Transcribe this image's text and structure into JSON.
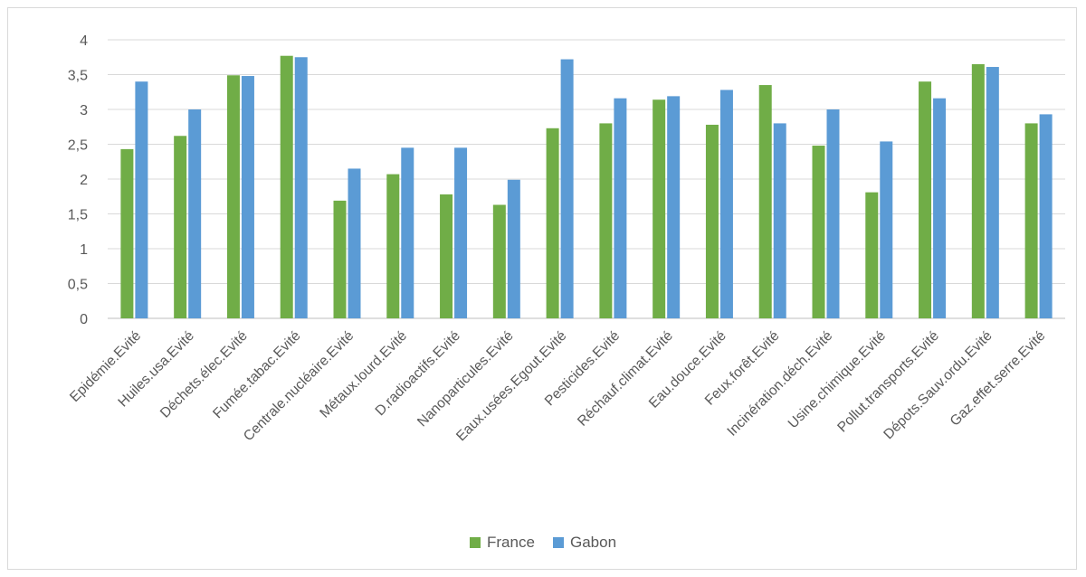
{
  "chart_data": {
    "type": "bar",
    "title": "",
    "xlabel": "",
    "ylabel": "",
    "ylim": [
      0,
      4
    ],
    "yticks": [
      "0",
      "0,5",
      "1",
      "1,5",
      "2",
      "2,5",
      "3",
      "3,5",
      "4"
    ],
    "grid": true,
    "legend_position": "bottom",
    "categories": [
      "Epidémie.Evité",
      "Huiles.usa.Evité",
      "Déchets.élec.Evité",
      "Fumée.tabac.Evité",
      "Centrale.nucléaire.Evité",
      "Métaux.lourd.Evité",
      "D.radioactifs.Evité",
      "Nanoparticules.Evité",
      "Eaux.usées.Egout.Evité",
      "Pesticides.Evité",
      "Réchauf.climat.Evité",
      "Eau.douce.Evité",
      "Feux.forêt.Evité",
      "Incinération.déch.Evité",
      "Usine.chimique.Evité",
      "Pollut.transports.Evité",
      "Dépots.Sauv.ordu.Evité",
      "Gaz.effet.serre.Evité"
    ],
    "series": [
      {
        "name": "France",
        "color": "#70ad47",
        "values": [
          2.43,
          2.62,
          3.49,
          3.77,
          1.69,
          2.07,
          1.78,
          1.63,
          2.73,
          2.8,
          3.14,
          2.78,
          3.35,
          2.48,
          1.81,
          3.4,
          3.65,
          2.8
        ]
      },
      {
        "name": "Gabon",
        "color": "#5b9bd5",
        "values": [
          3.4,
          3.0,
          3.48,
          3.75,
          2.15,
          2.45,
          2.45,
          1.99,
          3.72,
          3.16,
          3.19,
          3.28,
          2.8,
          3.0,
          2.54,
          3.16,
          3.61,
          2.93
        ]
      }
    ]
  }
}
